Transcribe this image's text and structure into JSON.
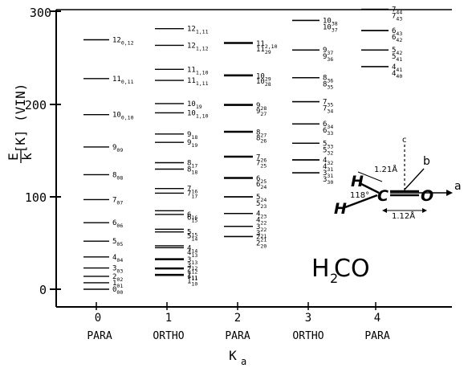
{
  "y_axis": {
    "ticks": [
      "0",
      "100",
      "200",
      "300"
    ],
    "title_main": "E",
    "title_denominator": "k",
    "title_units": "[K] (VIN)"
  },
  "x_axis": {
    "title_main": "K",
    "title_sub": "a",
    "columns": [
      {
        "ka": "0",
        "symmetry": "PARA"
      },
      {
        "ka": "1",
        "symmetry": "ORTHO"
      },
      {
        "ka": "2",
        "symmetry": "PARA"
      },
      {
        "ka": "3",
        "symmetry": "ORTHO"
      },
      {
        "ka": "4",
        "symmetry": "PARA"
      }
    ]
  },
  "molecule_label": {
    "main": "H",
    "sub": "2",
    "rest": " CO"
  },
  "molecule_diagram": {
    "atom_h": "H",
    "atom_c": "C",
    "atom_o": "O",
    "bond_ch_length": "1.21Å",
    "bond_co_length": "1.12Å",
    "angle": "118°",
    "axis_a": "a",
    "axis_b": "b",
    "axis_c": "c"
  },
  "energy_levels": {
    "col0": [
      {
        "E": 0,
        "label": "0",
        "sub": "00"
      },
      {
        "E": 7,
        "label": "1",
        "sub": "01"
      },
      {
        "E": 14,
        "label": "2",
        "sub": "02"
      },
      {
        "E": 23,
        "label": "3",
        "sub": "03"
      },
      {
        "E": 35,
        "label": "4",
        "sub": "04"
      },
      {
        "E": 52,
        "label": "5",
        "sub": "05"
      },
      {
        "E": 72,
        "label": "6",
        "sub": "06"
      },
      {
        "E": 97,
        "label": "7",
        "sub": "07"
      },
      {
        "E": 124,
        "label": "8",
        "sub": "08"
      },
      {
        "E": 154,
        "label": "9",
        "sub": "09"
      },
      {
        "E": 189,
        "label": "10",
        "sub": "0,10"
      },
      {
        "E": 228,
        "label": "11",
        "sub": "0,11"
      },
      {
        "E": 270,
        "label": "12",
        "sub": "0,12"
      }
    ],
    "col1": [
      {
        "E": 15,
        "label": "1",
        "sub": "11"
      },
      {
        "E": 16,
        "label": "1",
        "sub": "10"
      },
      {
        "E": 22,
        "label": "2",
        "sub": "12"
      },
      {
        "E": 23,
        "label": "2",
        "sub": "11"
      },
      {
        "E": 32,
        "label": "3",
        "sub": "13"
      },
      {
        "E": 33,
        "label": "3",
        "sub": "12"
      },
      {
        "E": 45,
        "label": "4",
        "sub": "14"
      },
      {
        "E": 47,
        "label": "4",
        "sub": "13"
      },
      {
        "E": 62,
        "label": "5",
        "sub": "15"
      },
      {
        "E": 65,
        "label": "5",
        "sub": "14"
      },
      {
        "E": 81,
        "label": "6",
        "sub": "16"
      },
      {
        "E": 85,
        "label": "6",
        "sub": "15"
      },
      {
        "E": 104,
        "label": "7",
        "sub": "17"
      },
      {
        "E": 109,
        "label": "7",
        "sub": "16"
      },
      {
        "E": 130,
        "label": "8",
        "sub": "18"
      },
      {
        "E": 137,
        "label": "8",
        "sub": "17"
      },
      {
        "E": 159,
        "label": "9",
        "sub": "19"
      },
      {
        "E": 168,
        "label": "9",
        "sub": "18"
      },
      {
        "E": 191,
        "label": "10",
        "sub": "1,10"
      },
      {
        "E": 201,
        "label": "10",
        "sub": "19"
      },
      {
        "E": 226,
        "label": "11",
        "sub": "1,11"
      },
      {
        "E": 238,
        "label": "11",
        "sub": "1,10"
      },
      {
        "E": 264,
        "label": "12",
        "sub": "1,12"
      },
      {
        "E": 282,
        "label": "12",
        "sub": "1,11"
      }
    ],
    "col2": [
      {
        "E": 57,
        "label": "2",
        "sub": "21"
      },
      {
        "E": 57,
        "label": "2",
        "sub": "20"
      },
      {
        "E": 68,
        "label": "3",
        "sub": "22"
      },
      {
        "E": 68,
        "label": "3",
        "sub": "21"
      },
      {
        "E": 82,
        "label": "4",
        "sub": "23"
      },
      {
        "E": 82,
        "label": "4",
        "sub": "22"
      },
      {
        "E": 100,
        "label": "5",
        "sub": "24"
      },
      {
        "E": 100,
        "label": "5",
        "sub": "23"
      },
      {
        "E": 120,
        "label": "6",
        "sub": "25"
      },
      {
        "E": 121,
        "label": "6",
        "sub": "24"
      },
      {
        "E": 143,
        "label": "7",
        "sub": "26"
      },
      {
        "E": 144,
        "label": "7",
        "sub": "25"
      },
      {
        "E": 170,
        "label": "8",
        "sub": "27"
      },
      {
        "E": 171,
        "label": "8",
        "sub": "26"
      },
      {
        "E": 199,
        "label": "9",
        "sub": "28"
      },
      {
        "E": 200,
        "label": "9",
        "sub": "27"
      },
      {
        "E": 231,
        "label": "10",
        "sub": "29"
      },
      {
        "E": 232,
        "label": "10",
        "sub": "28"
      },
      {
        "E": 266,
        "label": "11",
        "sub": "2,10"
      },
      {
        "E": 267,
        "label": "11",
        "sub": "29"
      }
    ],
    "col3": [
      {
        "E": 126,
        "label": "3",
        "sub": "31"
      },
      {
        "E": 126,
        "label": "3",
        "sub": "30"
      },
      {
        "E": 140,
        "label": "4",
        "sub": "32"
      },
      {
        "E": 140,
        "label": "4",
        "sub": "31"
      },
      {
        "E": 158,
        "label": "5",
        "sub": "33"
      },
      {
        "E": 158,
        "label": "5",
        "sub": "32"
      },
      {
        "E": 179,
        "label": "6",
        "sub": "34"
      },
      {
        "E": 179,
        "label": "6",
        "sub": "33"
      },
      {
        "E": 203,
        "label": "7",
        "sub": "35"
      },
      {
        "E": 203,
        "label": "7",
        "sub": "34"
      },
      {
        "E": 229,
        "label": "8",
        "sub": "36"
      },
      {
        "E": 229,
        "label": "8",
        "sub": "35"
      },
      {
        "E": 259,
        "label": "9",
        "sub": "37"
      },
      {
        "E": 259,
        "label": "9",
        "sub": "36"
      },
      {
        "E": 291,
        "label": "10",
        "sub": "38"
      },
      {
        "E": 291,
        "label": "10",
        "sub": "37"
      }
    ],
    "col4": [
      {
        "E": 241,
        "label": "4",
        "sub": "41"
      },
      {
        "E": 241,
        "label": "4",
        "sub": "40"
      },
      {
        "E": 259,
        "label": "5",
        "sub": "42"
      },
      {
        "E": 259,
        "label": "5",
        "sub": "41"
      },
      {
        "E": 280,
        "label": "6",
        "sub": "43"
      },
      {
        "E": 280,
        "label": "6",
        "sub": "42"
      },
      {
        "E": 303,
        "label": "7",
        "sub": "44"
      },
      {
        "E": 303,
        "label": "7",
        "sub": "43"
      }
    ]
  }
}
